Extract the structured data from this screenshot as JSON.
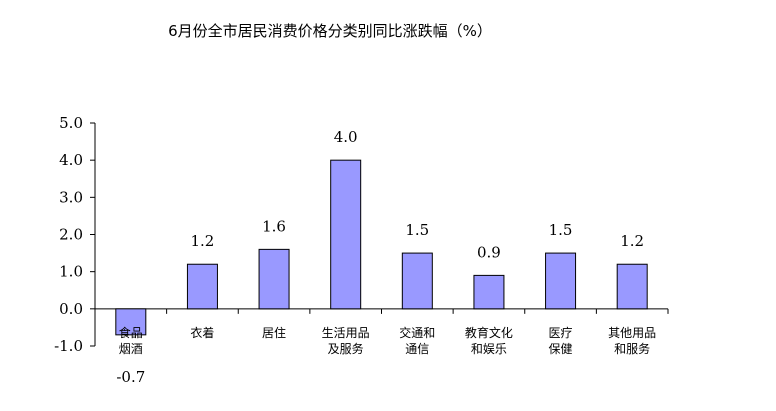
{
  "chart_data": {
    "type": "bar",
    "title": "6月份全市居民消费价格分类别同比涨跌幅（%）",
    "xlabel": "",
    "ylabel": "",
    "ylim": [
      -1.0,
      5.0
    ],
    "yticks": [
      "5.0",
      "4.0",
      "3.0",
      "2.0",
      "1.0",
      "0.0",
      "-1.0"
    ],
    "grid": false,
    "categories": [
      [
        "食品",
        "烟酒"
      ],
      [
        "衣着"
      ],
      [
        "居住"
      ],
      [
        "生活用品",
        "及服务"
      ],
      [
        "交通和",
        "通信"
      ],
      [
        "教育文化",
        "和娱乐"
      ],
      [
        "医疗",
        "保健"
      ],
      [
        "其他用品",
        "和服务"
      ]
    ],
    "values": [
      -0.7,
      1.2,
      1.6,
      4.0,
      1.5,
      0.9,
      1.5,
      1.2
    ],
    "data_labels": [
      "-0.7",
      "1.2",
      "1.6",
      "4.0",
      "1.5",
      "0.9",
      "1.5",
      "1.2"
    ],
    "colors": {
      "bar_fill": "#9999ff",
      "bar_stroke": "#000000",
      "axis": "#000000"
    }
  }
}
